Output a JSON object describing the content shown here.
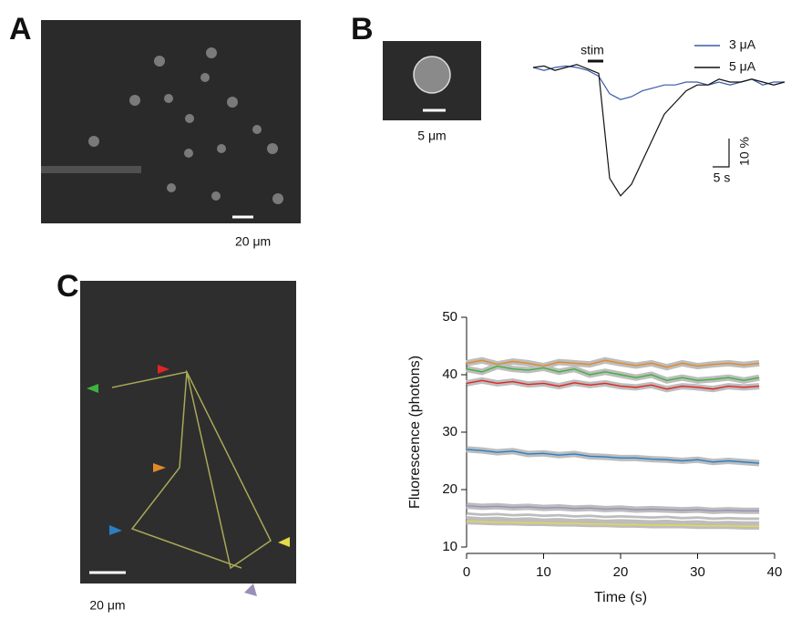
{
  "panel_a": {
    "label": "A",
    "scale_bar": "20 μm"
  },
  "panel_b": {
    "label": "B",
    "image_scale_bar": "5 μm",
    "stim": "stim",
    "scale_y": "10 %",
    "scale_x": "5 s",
    "time": [
      0,
      2,
      4,
      6,
      8,
      10,
      12,
      14,
      16,
      18,
      20,
      22,
      24,
      26,
      28,
      30,
      32,
      34,
      36,
      38,
      40,
      42,
      44,
      46
    ],
    "traces": [
      {
        "name": "3 μA",
        "color": "#3a5ba8",
        "values": [
          0,
          -1,
          0,
          0.5,
          0,
          -1,
          -3,
          -9,
          -11,
          -10,
          -8,
          -7,
          -6,
          -6,
          -5,
          -5,
          -6,
          -5,
          -6,
          -5,
          -4,
          -6,
          -5,
          -5
        ]
      },
      {
        "name": "5 μA",
        "color": "#111111",
        "values": [
          0,
          0.5,
          -1,
          0,
          1,
          -0.5,
          -2,
          -38,
          -44,
          -40,
          -32,
          -24,
          -16,
          -12,
          -8,
          -6,
          -6,
          -4,
          -5,
          -5,
          -4,
          -5,
          -6,
          -5
        ]
      }
    ]
  },
  "panel_c": {
    "label": "C",
    "scale_bar": "20 μm"
  },
  "chart_data": {
    "type": "line",
    "xlabel": "Time (s)",
    "ylabel": "Fluorescence (photons)",
    "x": [
      0,
      2,
      4,
      6,
      8,
      10,
      12,
      14,
      16,
      18,
      20,
      22,
      24,
      26,
      28,
      30,
      32,
      34,
      36,
      38
    ],
    "xlim": [
      0,
      40
    ],
    "xticks": [
      0,
      10,
      20,
      30,
      40
    ],
    "ylim": [
      10,
      50
    ],
    "yticks": [
      10,
      20,
      30,
      40,
      50
    ],
    "series": [
      {
        "color": "#e08a2a",
        "values": [
          42,
          42.5,
          41.8,
          42.3,
          42,
          41.5,
          42.2,
          42,
          41.8,
          42.5,
          42,
          41.6,
          42,
          41.3,
          42,
          41.5,
          41.8,
          42,
          41.7,
          42
        ]
      },
      {
        "color": "#3fb13f",
        "values": [
          41,
          40.5,
          41.5,
          41,
          40.8,
          41.2,
          40.5,
          41,
          40,
          40.5,
          40,
          39.5,
          40,
          39,
          39.5,
          39,
          39.2,
          39.5,
          39,
          39.5
        ]
      },
      {
        "color": "#e02424",
        "values": [
          38.5,
          39,
          38.5,
          38.8,
          38.3,
          38.5,
          38,
          38.6,
          38.2,
          38.5,
          38,
          37.8,
          38.2,
          37.5,
          38,
          37.8,
          37.5,
          38,
          37.8,
          38
        ]
      },
      {
        "color": "#2a7fc4",
        "values": [
          27,
          26.8,
          26.5,
          26.7,
          26.2,
          26.3,
          26,
          26.2,
          25.8,
          25.7,
          25.5,
          25.5,
          25.3,
          25.2,
          25,
          25.2,
          24.8,
          25,
          24.8,
          24.6
        ]
      },
      {
        "color": "#9b8fb8",
        "values": [
          17.2,
          17,
          17.1,
          16.9,
          17,
          16.8,
          16.9,
          16.7,
          16.8,
          16.6,
          16.7,
          16.5,
          16.6,
          16.5,
          16.4,
          16.5,
          16.3,
          16.4,
          16.3,
          16.3
        ]
      },
      {
        "color": "#ffffff",
        "values": [
          15.5,
          15.3,
          15.4,
          15.2,
          15.3,
          15.1,
          15.2,
          15,
          15.1,
          14.9,
          15,
          14.9,
          14.8,
          14.9,
          14.7,
          14.8,
          14.6,
          14.7,
          14.6,
          14.6
        ]
      },
      {
        "color": "#e6d94a",
        "values": [
          14.5,
          14.4,
          14.3,
          14.3,
          14.2,
          14.2,
          14.1,
          14.1,
          14,
          14,
          13.9,
          13.9,
          13.8,
          13.8,
          13.8,
          13.7,
          13.7,
          13.7,
          13.6,
          13.6
        ]
      }
    ]
  }
}
